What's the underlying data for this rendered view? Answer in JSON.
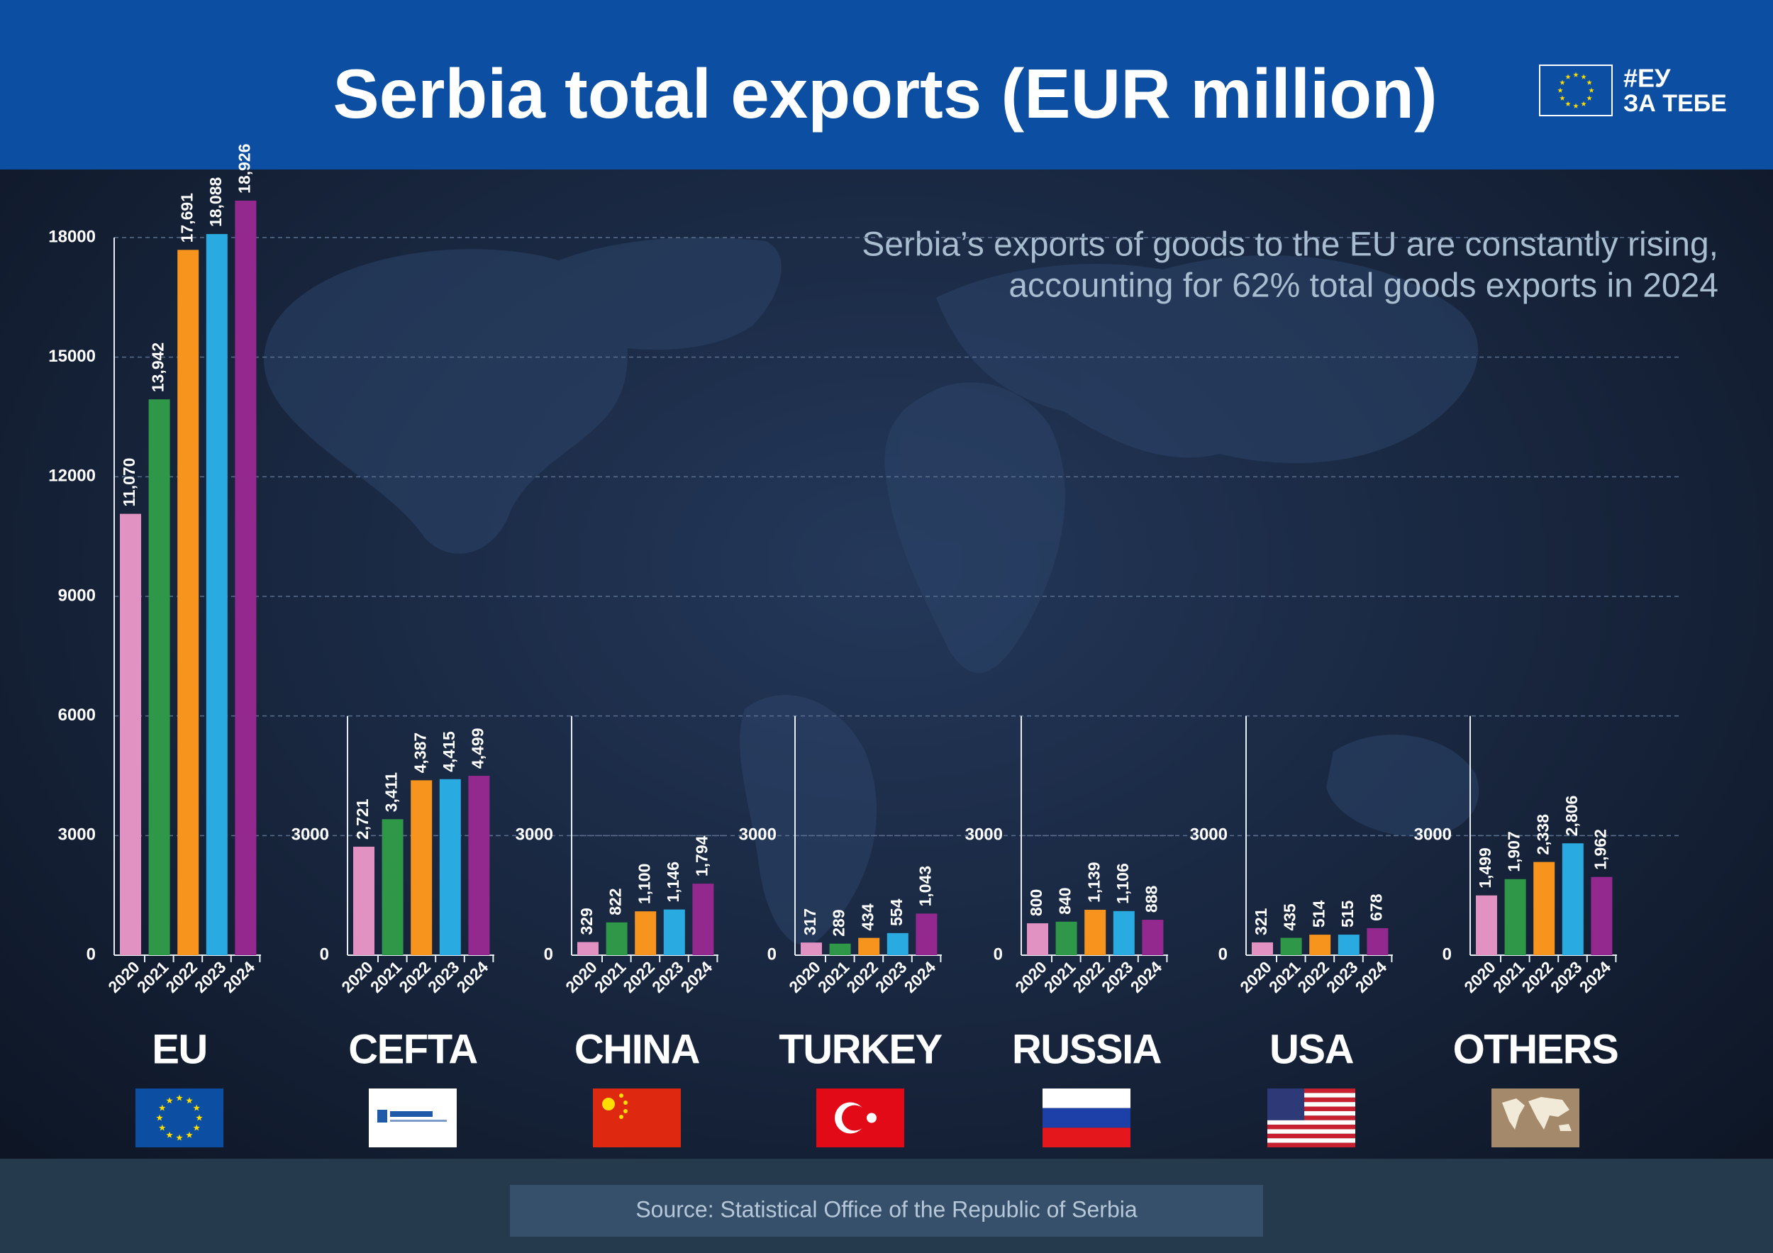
{
  "header": {
    "title": "Serbia total exports (EUR million)",
    "logo_line1": "#ЕУ",
    "logo_line2": "ЗА ТЕБЕ"
  },
  "subtitle_line1": "Serbia’s exports of goods to the EU are constantly rising,",
  "subtitle_line2": "accounting for 62% total goods exports in 2024",
  "source": "Source: Statistical Office of the Republic of Serbia",
  "chart_data": [
    {
      "type": "bar",
      "title": "EU",
      "categories": [
        "2020",
        "2021",
        "2022",
        "2023",
        "2024"
      ],
      "values": [
        11070,
        13942,
        17691,
        18088,
        18926
      ],
      "value_labels": [
        "11,070",
        "13,942",
        "17,691",
        "18,088",
        "18,926"
      ],
      "colors": [
        "#e291c3",
        "#2f9848",
        "#f7941d",
        "#29abe2",
        "#93288f"
      ],
      "ylim": [
        0,
        18000
      ],
      "yticks": [
        0,
        3000,
        6000,
        9000,
        12000,
        15000,
        18000
      ],
      "grid": true
    },
    {
      "type": "bar",
      "title": "CEFTA",
      "categories": [
        "2020",
        "2021",
        "2022",
        "2023",
        "2024"
      ],
      "values": [
        2721,
        3411,
        4387,
        4415,
        4499
      ],
      "value_labels": [
        "2,721",
        "3,411",
        "4,387",
        "4,415",
        "4,499"
      ],
      "colors": [
        "#e291c3",
        "#2f9848",
        "#f7941d",
        "#29abe2",
        "#93288f"
      ],
      "ylim": [
        0,
        6000
      ],
      "yticks": [
        0,
        3000
      ],
      "grid": true
    },
    {
      "type": "bar",
      "title": "CHINA",
      "categories": [
        "2020",
        "2021",
        "2022",
        "2023",
        "2024"
      ],
      "values": [
        329,
        822,
        1100,
        1146,
        1794
      ],
      "value_labels": [
        "329",
        "822",
        "1,100",
        "1,146",
        "1,794"
      ],
      "colors": [
        "#e291c3",
        "#2f9848",
        "#f7941d",
        "#29abe2",
        "#93288f"
      ],
      "ylim": [
        0,
        6000
      ],
      "yticks": [
        0,
        3000
      ],
      "grid": true
    },
    {
      "type": "bar",
      "title": "TURKEY",
      "categories": [
        "2020",
        "2021",
        "2022",
        "2023",
        "2024"
      ],
      "values": [
        317,
        289,
        434,
        554,
        1043
      ],
      "value_labels": [
        "317",
        "289",
        "434",
        "554",
        "1,043"
      ],
      "colors": [
        "#e291c3",
        "#2f9848",
        "#f7941d",
        "#29abe2",
        "#93288f"
      ],
      "ylim": [
        0,
        6000
      ],
      "yticks": [
        0,
        3000
      ],
      "grid": true
    },
    {
      "type": "bar",
      "title": "RUSSIA",
      "categories": [
        "2020",
        "2021",
        "2022",
        "2023",
        "2024"
      ],
      "values": [
        800,
        840,
        1139,
        1106,
        888
      ],
      "value_labels": [
        "800",
        "840",
        "1,139",
        "1,106",
        "888"
      ],
      "colors": [
        "#e291c3",
        "#2f9848",
        "#f7941d",
        "#29abe2",
        "#93288f"
      ],
      "ylim": [
        0,
        6000
      ],
      "yticks": [
        0,
        3000
      ],
      "grid": true
    },
    {
      "type": "bar",
      "title": "USA",
      "categories": [
        "2020",
        "2021",
        "2022",
        "2023",
        "2024"
      ],
      "values": [
        321,
        435,
        514,
        515,
        678
      ],
      "value_labels": [
        "321",
        "435",
        "514",
        "515",
        "678"
      ],
      "colors": [
        "#e291c3",
        "#2f9848",
        "#f7941d",
        "#29abe2",
        "#93288f"
      ],
      "ylim": [
        0,
        6000
      ],
      "yticks": [
        0,
        3000
      ],
      "grid": true
    },
    {
      "type": "bar",
      "title": "OTHERS",
      "categories": [
        "2020",
        "2021",
        "2022",
        "2023",
        "2024"
      ],
      "values": [
        1499,
        1907,
        2338,
        2806,
        1962
      ],
      "value_labels": [
        "1,499",
        "1,907",
        "2,338",
        "2,806",
        "1,962"
      ],
      "colors": [
        "#e291c3",
        "#2f9848",
        "#f7941d",
        "#29abe2",
        "#93288f"
      ],
      "ylim": [
        0,
        6000
      ],
      "yticks": [
        0,
        3000
      ],
      "grid": true
    }
  ]
}
